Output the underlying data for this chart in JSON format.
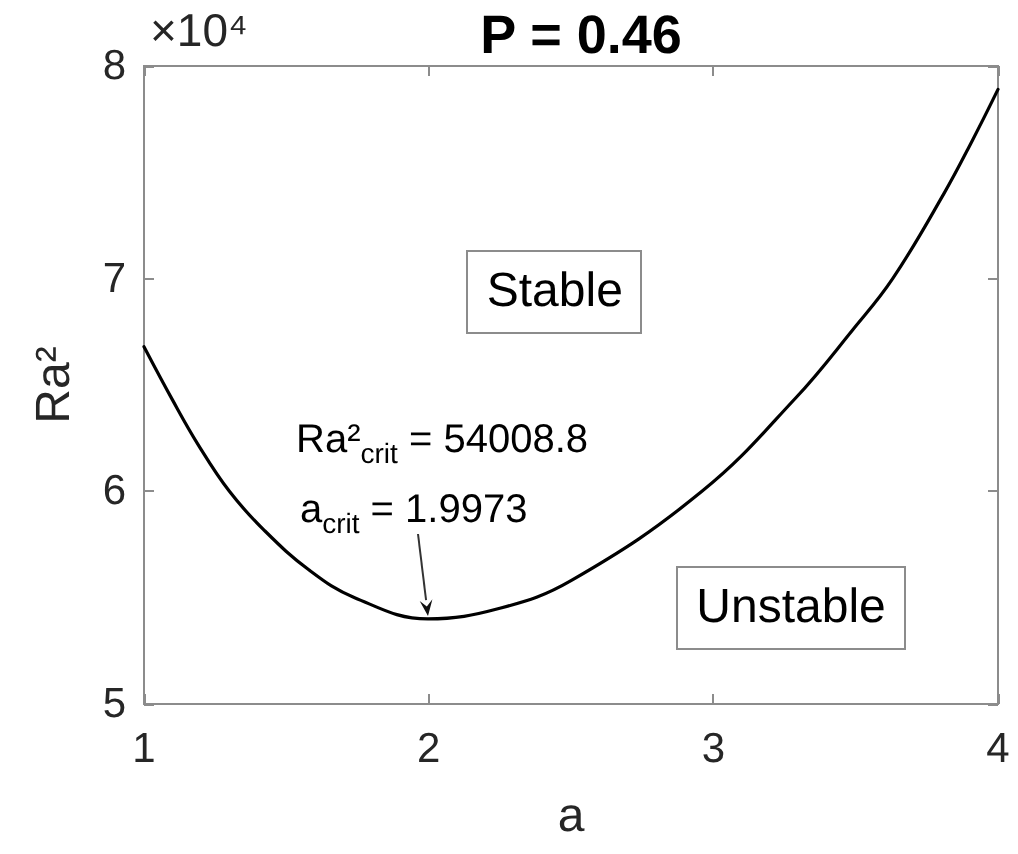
{
  "chart_data": {
    "type": "line",
    "title": "P = 0.46",
    "xlabel": "a",
    "ylabel": "Ra²",
    "x": [
      1.0,
      1.1,
      1.19,
      1.3,
      1.42,
      1.58,
      1.74,
      1.9973,
      2.25,
      2.5,
      2.96,
      3.29,
      3.49,
      3.63,
      3.81,
      3.91,
      4.0
    ],
    "values": [
      6.68,
      6.43,
      6.22,
      6.0,
      5.82,
      5.63,
      5.5,
      5.4,
      5.45,
      5.58,
      6.0,
      6.44,
      6.76,
      7.0,
      7.4,
      7.65,
      7.89
    ],
    "color": "#000000",
    "marker": "none",
    "line_style": "solid",
    "grid": false,
    "xlim": [
      1,
      4
    ],
    "xticks": [
      1,
      2,
      3,
      4
    ],
    "ylim": [
      5,
      8
    ],
    "yticks": [
      5,
      6,
      7,
      8
    ],
    "annotations": [
      "×10⁴",
      "Stable",
      "Unstable",
      "Ra²$_{crit}$ = 54008.8",
      {
        "text": "a$_{crit}$ = 1.9973",
        "x": 1.9973,
        "y": 5.4
      }
    ]
  }
}
